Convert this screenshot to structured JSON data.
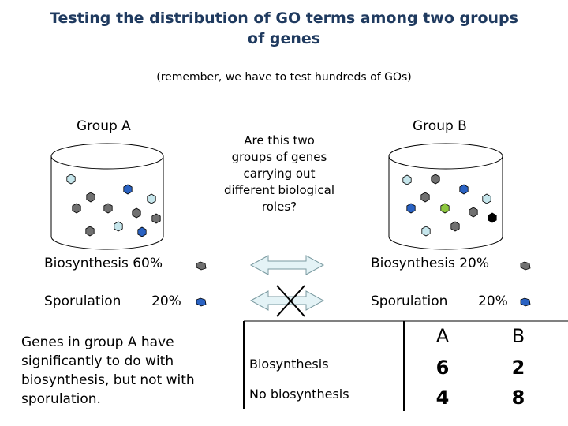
{
  "title_line1": "Testing the distribution of GO terms among two groups",
  "title_line2": "of genes",
  "subtitle": "(remember, we have to test hundreds of GOs)",
  "group_a": {
    "label": "Group A",
    "biosynthesis_label": "Biosynthesis 60%",
    "sporulation_label": "Sporulation",
    "sporulation_pct": "20%"
  },
  "group_b": {
    "label": "Group B",
    "biosynthesis_label": "Biosynthesis 20%",
    "sporulation_label": "Sporulation",
    "sporulation_pct": "20%"
  },
  "question": [
    "Are this two",
    "groups of genes",
    "carrying out",
    "different biological",
    "roles?"
  ],
  "conclusion": [
    "Genes in group A have",
    "significantly to do with",
    "biosynthesis, but not with",
    "sporulation."
  ],
  "table": {
    "col_a": "A",
    "col_b": "B",
    "rows": [
      {
        "label": "Biosynthesis",
        "a": "6",
        "b": "2"
      },
      {
        "label": "No biosynthesis",
        "a": "4",
        "b": "8"
      }
    ]
  },
  "colors": {
    "title": "#1f3a5f",
    "gray_dot": "#707070",
    "light_blue_dot": "#c6e6ec",
    "blue_dot": "#2a62c2",
    "green_dot": "#8cc63f",
    "black_dot": "#000000",
    "arrow_fill": "#e4f3f6",
    "arrow_stroke": "#7a9aa0"
  }
}
